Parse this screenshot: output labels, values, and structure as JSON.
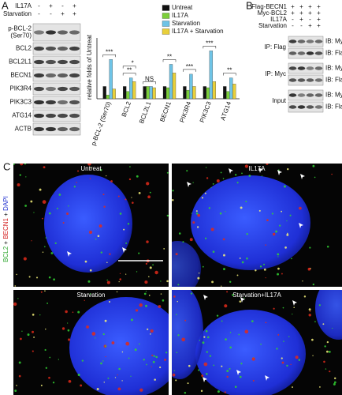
{
  "panels": [
    "A",
    "B",
    "C"
  ],
  "blot_a": {
    "conditions": [
      {
        "label": "IL17A",
        "signs": [
          "-",
          "+",
          "-",
          "+"
        ]
      },
      {
        "label": "Starvation",
        "signs": [
          "-",
          "-",
          "+",
          "+"
        ]
      }
    ],
    "bands": [
      [
        "p-BCL-2",
        "(Ser70)"
      ],
      [
        "BCL2"
      ],
      [
        "BCL2L1"
      ],
      [
        "BECN1"
      ],
      [
        "PIK3R4"
      ],
      [
        "PIK3C3"
      ],
      [
        "ATG14"
      ],
      [
        "ACTB"
      ]
    ]
  },
  "chart_data": {
    "type": "bar",
    "y_label": "relative folds of Untreat",
    "categories": [
      "p-BCL-2 (Ser70)",
      "BCL2",
      "BCL2L1",
      "BECN1",
      "PIK3R4",
      "PIK3C3",
      "ATG14"
    ],
    "series": [
      {
        "name": "Untreat",
        "color": "#111111",
        "values": [
          1,
          1,
          1,
          1,
          1,
          1,
          1
        ]
      },
      {
        "name": "IL17A",
        "color": "#7ccf3a",
        "values": [
          0.3,
          0.6,
          1.0,
          0.9,
          0.7,
          0.9,
          0.6
        ]
      },
      {
        "name": "Starvation",
        "color": "#6ec3e6",
        "values": [
          3.2,
          1.7,
          1.0,
          2.8,
          2.0,
          3.9,
          1.7
        ]
      },
      {
        "name": "IL17A + Starvation",
        "color": "#e8cf3a",
        "values": [
          0.8,
          1.4,
          0.9,
          2.1,
          1.0,
          1.4,
          1.2
        ]
      }
    ],
    "annotations": [
      [
        "***"
      ],
      [
        "**",
        "*"
      ],
      [
        "NS"
      ],
      [
        "**"
      ],
      [
        "***"
      ],
      [
        "***"
      ],
      [
        "**"
      ]
    ],
    "ylim": [
      0,
      4.5
    ]
  },
  "blot_b": {
    "conditions": [
      {
        "label": "Flag-BECN1",
        "signs": [
          "+",
          "+",
          "+",
          "+"
        ]
      },
      {
        "label": "Myc-BCL2",
        "signs": [
          "+",
          "+",
          "+",
          "+"
        ]
      },
      {
        "label": "IL17A",
        "signs": [
          "-",
          "+",
          "-",
          "+"
        ]
      },
      {
        "label": "Starvation",
        "signs": [
          "-",
          "-",
          "+",
          "+"
        ]
      }
    ],
    "groups": [
      {
        "label": "IP: Flag",
        "ib": [
          "IB: Myc",
          "IB: Flag"
        ]
      },
      {
        "label": "IP: Myc",
        "ib": [
          "IB: Myc",
          "IB: Flag"
        ]
      },
      {
        "label": "Input",
        "ib": [
          "IB: Myc",
          "IB: Flag"
        ]
      }
    ]
  },
  "micrographs": {
    "stain": [
      "BCL2",
      "+",
      "BECN1",
      "+",
      "DAPI"
    ],
    "stain_colors": [
      "#2fa52f",
      "#111111",
      "#d42020",
      "#111111",
      "#2030d0"
    ],
    "images": [
      "Untreat",
      "IL17A",
      "Starvation",
      "Starvation+IL17A"
    ]
  }
}
